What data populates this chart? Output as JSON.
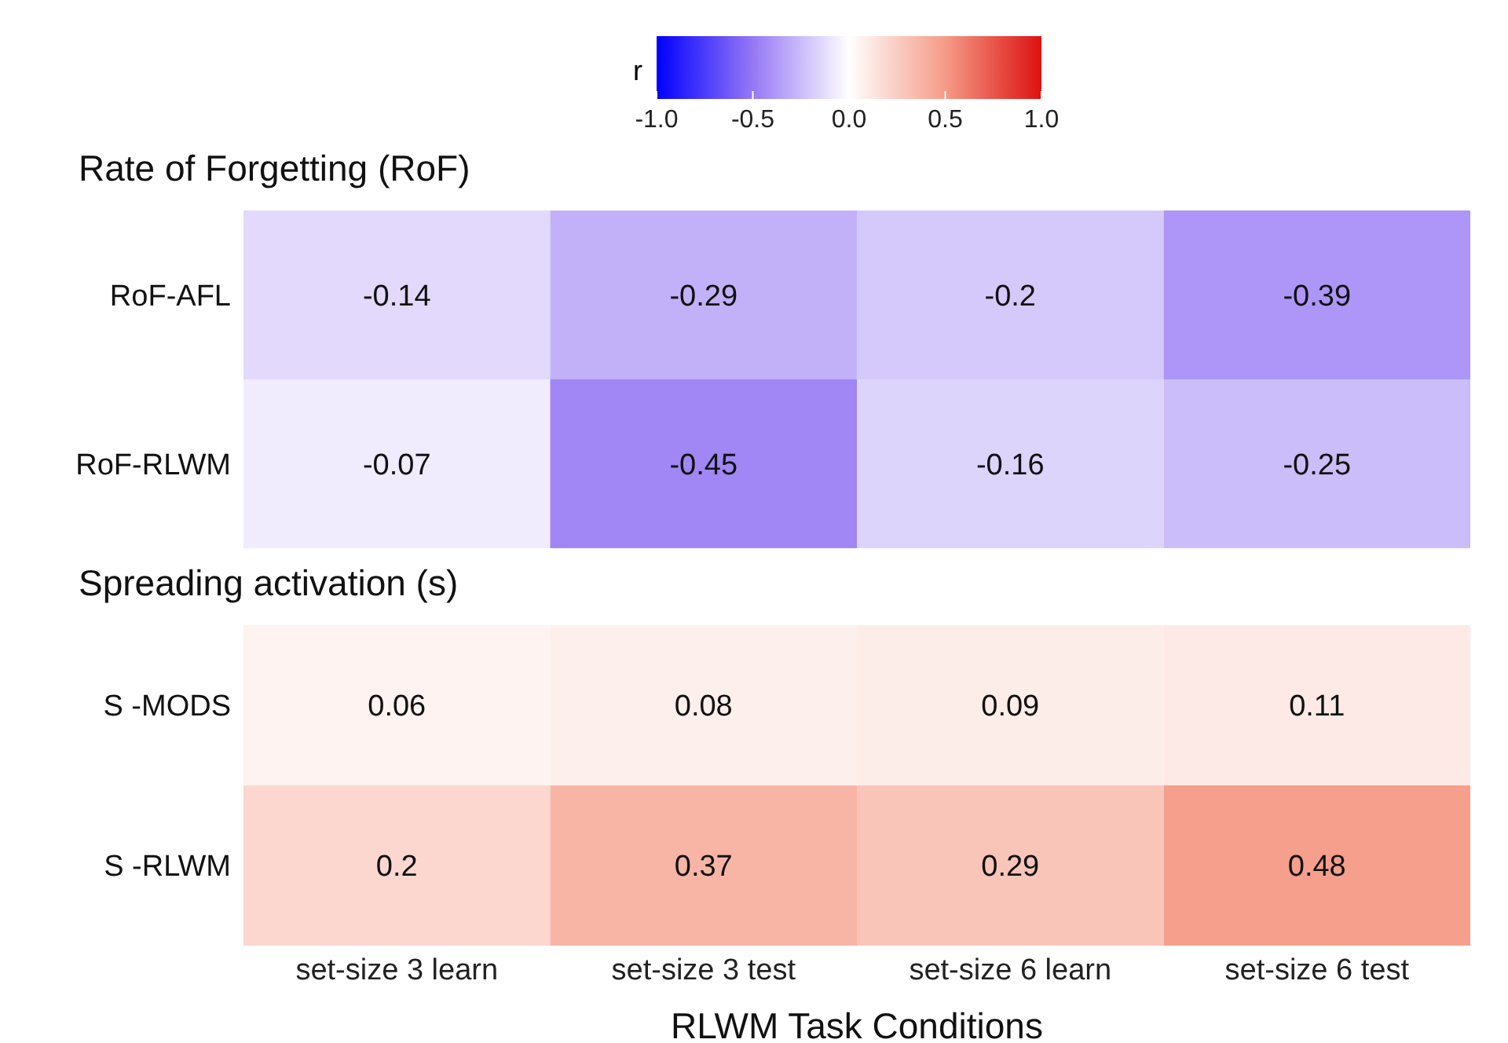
{
  "chart_data": [
    {
      "type": "heatmap",
      "title": "Rate of Forgetting (RoF)",
      "categories": [
        null,
        null,
        null,
        null
      ],
      "y_categories": [
        "RoF-AFL",
        "RoF-RLWM"
      ],
      "cells": [
        [
          -0.14,
          -0.29,
          -0.2,
          -0.39
        ],
        [
          -0.07,
          -0.45,
          -0.16,
          -0.25
        ]
      ],
      "data_labels": true,
      "tick_labels": "y",
      "clabel": "r",
      "clim": [
        -1,
        1
      ],
      "cticks": [
        {
          "value": -1,
          "label": "-1.0"
        },
        {
          "value": -0.5,
          "label": "-0.5"
        },
        {
          "value": 0,
          "label": "0.0"
        },
        {
          "value": 0.5,
          "label": "0.5"
        },
        {
          "value": 1,
          "label": "1.0"
        }
      ]
    },
    {
      "type": "heatmap",
      "title": "Spreading activation (s)",
      "xlabel": "RLWM Task Conditions",
      "categories": [
        "set-size 3 learn",
        "set-size 3 test",
        "set-size 6 learn",
        "set-size 6 test"
      ],
      "y_categories": [
        "S -MODS",
        "S -RLWM"
      ],
      "cells": [
        [
          0.06,
          0.08,
          0.09,
          0.11
        ],
        [
          0.2,
          0.37,
          0.29,
          0.48
        ]
      ],
      "data_labels": true
    }
  ]
}
